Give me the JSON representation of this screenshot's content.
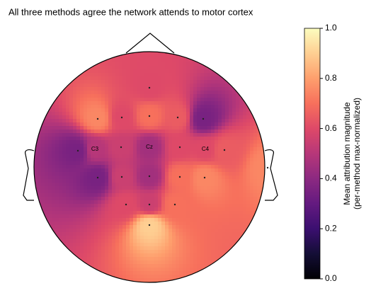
{
  "chart_data": {
    "type": "topomap",
    "title": "All three methods agree the network attends to motor cortex",
    "colormap": "magma",
    "clim": [
      0,
      1
    ],
    "colorbar_label": [
      "Mean attribution magnitude",
      "(per-method max-normalized)"
    ],
    "colorbar_ticks": [
      {
        "value": 0,
        "label": "0.0"
      },
      {
        "value": 0.2,
        "label": "0.2"
      },
      {
        "value": 0.4,
        "label": "0.4"
      },
      {
        "value": 0.6,
        "label": "0.6"
      },
      {
        "value": 0.8,
        "label": "0.8"
      },
      {
        "value": 1,
        "label": "1.0"
      }
    ],
    "electrodes": [
      null,
      null,
      null,
      null,
      null,
      null,
      null,
      "C3",
      null,
      "Cz",
      null,
      "C4",
      null,
      null,
      null,
      null,
      null,
      null,
      null,
      null,
      null,
      null,
      null
    ],
    "values": [
      0.6,
      0.75,
      0.6,
      0.7,
      0.65,
      0.35,
      0.35,
      0.5,
      0.55,
      0.45,
      0.6,
      0.6,
      0.65,
      0.75,
      0.35,
      0.55,
      0.45,
      0.7,
      0.75,
      0.6,
      0.55,
      0.7,
      0.9
    ]
  }
}
